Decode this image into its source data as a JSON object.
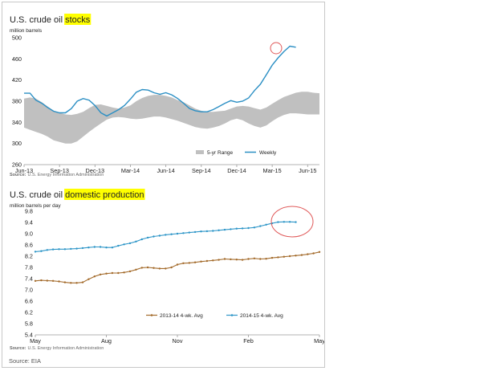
{
  "page": {
    "source_note": "Source: EIA",
    "colors": {
      "weekly": "#2b8fc4",
      "range": "#c0c0c0",
      "avg_1314": "#a36a2a",
      "avg_1415": "#2e96c8",
      "highlight": "#ffff00",
      "annotation_circle": "#e05a5a"
    }
  },
  "chart_data": [
    {
      "type": "line",
      "title_prefix": "U.S. crude oil ",
      "title_highlight": "stocks",
      "ylabel": "million barrels",
      "source_label": "Source:",
      "source_text": "U.S. Energy Information Administration",
      "ylim": [
        260,
        500
      ],
      "yticks": [
        "260",
        "300",
        "340",
        "380",
        "420",
        "460",
        "500"
      ],
      "xlim": [
        0,
        25
      ],
      "xticks": [
        {
          "label": "Jun-13",
          "x": 0
        },
        {
          "label": "Sep-13",
          "x": 3
        },
        {
          "label": "Dec-13",
          "x": 6
        },
        {
          "label": "Mar-14",
          "x": 9
        },
        {
          "label": "Jun-14",
          "x": 12
        },
        {
          "label": "Sep-14",
          "x": 15
        },
        {
          "label": "Dec-14",
          "x": 18
        },
        {
          "label": "Mar-15",
          "x": 21
        },
        {
          "label": "Jun-15",
          "x": 24
        }
      ],
      "legend": [
        "5-yr Range",
        "Weekly"
      ],
      "legend_position": "bottom-right",
      "range_band": {
        "x": [
          0,
          0.5,
          1,
          1.5,
          2,
          2.5,
          3,
          3.5,
          4,
          4.5,
          5,
          5.5,
          6,
          6.5,
          7,
          7.5,
          8,
          8.5,
          9,
          9.5,
          10,
          10.5,
          11,
          11.5,
          12,
          12.5,
          13,
          13.5,
          14,
          14.5,
          15,
          15.5,
          16,
          16.5,
          17,
          17.5,
          18,
          18.5,
          19,
          19.5,
          20,
          20.5,
          21,
          21.5,
          22,
          22.5,
          23,
          23.5,
          24,
          24.5,
          25
        ],
        "high": [
          385,
          387,
          385,
          378,
          370,
          362,
          358,
          355,
          354,
          356,
          360,
          367,
          373,
          374,
          371,
          368,
          366,
          368,
          372,
          380,
          386,
          390,
          392,
          392,
          390,
          387,
          382,
          378,
          372,
          366,
          362,
          360,
          360,
          361,
          362,
          366,
          370,
          371,
          370,
          367,
          364,
          368,
          375,
          382,
          388,
          392,
          396,
          398,
          398,
          396,
          395
        ],
        "low": [
          330,
          326,
          322,
          318,
          313,
          306,
          303,
          300,
          300,
          304,
          313,
          322,
          330,
          338,
          345,
          349,
          350,
          349,
          347,
          346,
          347,
          349,
          351,
          351,
          349,
          346,
          343,
          339,
          335,
          331,
          329,
          328,
          330,
          333,
          338,
          344,
          347,
          344,
          338,
          333,
          330,
          334,
          342,
          349,
          354,
          357,
          357,
          356,
          355,
          355,
          355
        ]
      },
      "series": [
        {
          "name": "Weekly",
          "x": [
            0,
            0.5,
            1,
            1.5,
            2,
            2.5,
            3,
            3.5,
            4,
            4.5,
            5,
            5.5,
            6,
            6.5,
            7,
            7.5,
            8,
            8.5,
            9,
            9.5,
            10,
            10.5,
            11,
            11.5,
            12,
            12.5,
            13,
            13.5,
            14,
            14.5,
            15,
            15.5,
            16,
            16.5,
            17,
            17.5,
            18,
            18.5,
            19,
            19.5,
            20,
            20.5,
            21,
            21.5,
            22,
            22.5,
            23
          ],
          "values": [
            395,
            395,
            382,
            376,
            368,
            361,
            358,
            358,
            366,
            380,
            385,
            382,
            372,
            358,
            352,
            358,
            364,
            372,
            384,
            397,
            402,
            401,
            396,
            393,
            396,
            392,
            385,
            376,
            366,
            362,
            360,
            360,
            364,
            370,
            376,
            381,
            378,
            380,
            386,
            400,
            412,
            430,
            448,
            462,
            474,
            484,
            482
          ]
        }
      ]
    },
    {
      "type": "line",
      "title_prefix": "U.S. crude oil ",
      "title_highlight": "domestic production",
      "ylabel": "million barrels per day",
      "source_label": "Source:",
      "source_text": "U.S. Energy Information Administration",
      "ylim": [
        5.4,
        9.8
      ],
      "yticks": [
        "5.4",
        "5.8",
        "6.2",
        "6.6",
        "7.0",
        "7.4",
        "7.8",
        "8.2",
        "8.6",
        "9.0",
        "9.4",
        "9.8"
      ],
      "xlim": [
        0,
        12
      ],
      "xticks": [
        {
          "label": "May",
          "x": 0
        },
        {
          "label": "Aug",
          "x": 3
        },
        {
          "label": "Nov",
          "x": 6
        },
        {
          "label": "Feb",
          "x": 9
        },
        {
          "label": "May",
          "x": 12
        }
      ],
      "legend": [
        "2013-14  4-wk. Avg",
        "2014-15  4-wk. Avg"
      ],
      "legend_position": "bottom-right",
      "series": [
        {
          "name": "2013-14  4-wk. Avg",
          "x": [
            0,
            0.25,
            0.5,
            0.75,
            1,
            1.25,
            1.5,
            1.75,
            2,
            2.25,
            2.5,
            2.75,
            3,
            3.25,
            3.5,
            3.75,
            4,
            4.25,
            4.5,
            4.75,
            5,
            5.25,
            5.5,
            5.75,
            6,
            6.25,
            6.5,
            6.75,
            7,
            7.25,
            7.5,
            7.75,
            8,
            8.25,
            8.5,
            8.75,
            9,
            9.25,
            9.5,
            9.75,
            10,
            10.25,
            10.5,
            10.75,
            11,
            11.25,
            11.5,
            11.75,
            12
          ],
          "values": [
            7.32,
            7.34,
            7.33,
            7.32,
            7.3,
            7.27,
            7.25,
            7.25,
            7.27,
            7.38,
            7.48,
            7.55,
            7.58,
            7.6,
            7.6,
            7.62,
            7.66,
            7.72,
            7.79,
            7.8,
            7.78,
            7.76,
            7.76,
            7.8,
            7.9,
            7.95,
            7.96,
            7.98,
            8.01,
            8.03,
            8.05,
            8.07,
            8.1,
            8.09,
            8.08,
            8.07,
            8.1,
            8.12,
            8.1,
            8.11,
            8.14,
            8.16,
            8.18,
            8.2,
            8.22,
            8.24,
            8.27,
            8.3,
            8.35
          ]
        },
        {
          "name": "2014-15  4-wk. Avg",
          "x": [
            0,
            0.25,
            0.5,
            0.75,
            1,
            1.25,
            1.5,
            1.75,
            2,
            2.25,
            2.5,
            2.75,
            3,
            3.25,
            3.5,
            3.75,
            4,
            4.25,
            4.5,
            4.75,
            5,
            5.25,
            5.5,
            5.75,
            6,
            6.25,
            6.5,
            6.75,
            7,
            7.25,
            7.5,
            7.75,
            8,
            8.25,
            8.5,
            8.75,
            9,
            9.25,
            9.5,
            9.75,
            10,
            10.25,
            10.5,
            10.75,
            11
          ],
          "values": [
            8.36,
            8.38,
            8.42,
            8.44,
            8.45,
            8.45,
            8.46,
            8.47,
            8.49,
            8.51,
            8.53,
            8.53,
            8.51,
            8.51,
            8.57,
            8.62,
            8.66,
            8.72,
            8.8,
            8.86,
            8.9,
            8.93,
            8.96,
            8.98,
            9.0,
            9.02,
            9.04,
            9.06,
            9.08,
            9.09,
            9.1,
            9.12,
            9.14,
            9.16,
            9.18,
            9.19,
            9.2,
            9.22,
            9.27,
            9.32,
            9.37,
            9.41,
            9.42,
            9.42,
            9.41
          ]
        }
      ]
    }
  ]
}
